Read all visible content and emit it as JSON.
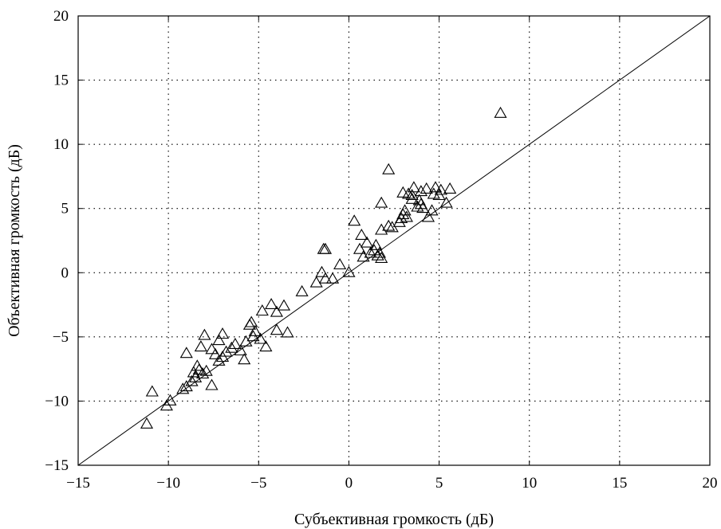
{
  "chart_data": {
    "type": "scatter",
    "title": "",
    "xlabel": "Субъективная громкость (дБ)",
    "ylabel": "Объективная громкость (дБ)",
    "xlim": [
      -15,
      20
    ],
    "ylim": [
      -15,
      20
    ],
    "x_ticks": [
      -15,
      -10,
      -5,
      0,
      5,
      10,
      15,
      20
    ],
    "y_ticks": [
      -15,
      -10,
      -5,
      0,
      5,
      10,
      15,
      20
    ],
    "x_tick_labels": [
      "−15",
      "−10",
      "−5",
      "0",
      "5",
      "10",
      "15",
      "20"
    ],
    "y_tick_labels": [
      "−15",
      "−10",
      "−5",
      "0",
      "5",
      "10",
      "15",
      "20"
    ],
    "grid": true,
    "marker": "triangle-open",
    "reference_line": {
      "from": [
        -15,
        -15
      ],
      "to": [
        20,
        20
      ]
    },
    "series": [
      {
        "points": [
          [
            -11.2,
            -11.8
          ],
          [
            -10.1,
            -10.4
          ],
          [
            -9.9,
            -10.0
          ],
          [
            -10.9,
            -9.3
          ],
          [
            -9.2,
            -9.1
          ],
          [
            -9.0,
            -8.9
          ],
          [
            -8.7,
            -8.5
          ],
          [
            -8.5,
            -8.2
          ],
          [
            -8.6,
            -7.8
          ],
          [
            -8.3,
            -7.6
          ],
          [
            -8.1,
            -7.9
          ],
          [
            -7.9,
            -7.7
          ],
          [
            -8.4,
            -7.3
          ],
          [
            -7.6,
            -8.8
          ],
          [
            -9.0,
            -6.3
          ],
          [
            -8.2,
            -5.8
          ],
          [
            -7.6,
            -6.0
          ],
          [
            -7.4,
            -6.4
          ],
          [
            -7.2,
            -6.9
          ],
          [
            -7.0,
            -6.6
          ],
          [
            -6.8,
            -6.2
          ],
          [
            -6.5,
            -5.9
          ],
          [
            -6.3,
            -5.6
          ],
          [
            -6.0,
            -6.1
          ],
          [
            -5.8,
            -6.8
          ],
          [
            -5.7,
            -5.4
          ],
          [
            -7.2,
            -5.3
          ],
          [
            -7.0,
            -4.8
          ],
          [
            -8.0,
            -4.9
          ],
          [
            -5.5,
            -4.1
          ],
          [
            -5.4,
            -3.9
          ],
          [
            -5.2,
            -4.6
          ],
          [
            -5.3,
            -5.0
          ],
          [
            -4.9,
            -5.2
          ],
          [
            -4.6,
            -5.8
          ],
          [
            -4.8,
            -3.0
          ],
          [
            -4.3,
            -2.5
          ],
          [
            -4.0,
            -3.1
          ],
          [
            -3.6,
            -2.6
          ],
          [
            -4.0,
            -4.5
          ],
          [
            -3.4,
            -4.7
          ],
          [
            -2.6,
            -1.5
          ],
          [
            -1.8,
            -0.8
          ],
          [
            -1.5,
            0.0
          ],
          [
            -1.3,
            -0.5
          ],
          [
            -0.9,
            -0.5
          ],
          [
            -0.5,
            0.6
          ],
          [
            0.0,
            0.0
          ],
          [
            -1.4,
            1.8
          ],
          [
            -1.3,
            1.8
          ],
          [
            0.3,
            4.0
          ],
          [
            0.7,
            2.9
          ],
          [
            0.6,
            1.8
          ],
          [
            0.8,
            1.2
          ],
          [
            1.0,
            2.3
          ],
          [
            1.2,
            1.5
          ],
          [
            1.4,
            1.7
          ],
          [
            1.5,
            2.1
          ],
          [
            1.6,
            1.3
          ],
          [
            1.7,
            1.5
          ],
          [
            1.8,
            1.1
          ],
          [
            1.8,
            3.3
          ],
          [
            1.8,
            5.4
          ],
          [
            2.2,
            3.6
          ],
          [
            2.4,
            3.5
          ],
          [
            2.2,
            8.0
          ],
          [
            2.8,
            3.9
          ],
          [
            2.9,
            4.2
          ],
          [
            3.0,
            4.5
          ],
          [
            3.0,
            6.2
          ],
          [
            3.1,
            4.8
          ],
          [
            3.2,
            4.3
          ],
          [
            3.3,
            6.1
          ],
          [
            3.5,
            6.0
          ],
          [
            3.5,
            5.7
          ],
          [
            3.6,
            6.6
          ],
          [
            3.8,
            5.1
          ],
          [
            3.9,
            5.6
          ],
          [
            4.0,
            5.3
          ],
          [
            4.0,
            6.3
          ],
          [
            4.1,
            5.0
          ],
          [
            4.3,
            6.5
          ],
          [
            4.4,
            4.3
          ],
          [
            4.6,
            4.8
          ],
          [
            4.7,
            6.1
          ],
          [
            4.8,
            6.6
          ],
          [
            5.0,
            6.0
          ],
          [
            5.1,
            6.4
          ],
          [
            5.4,
            5.4
          ],
          [
            5.6,
            6.5
          ],
          [
            8.4,
            12.4
          ]
        ]
      }
    ]
  }
}
